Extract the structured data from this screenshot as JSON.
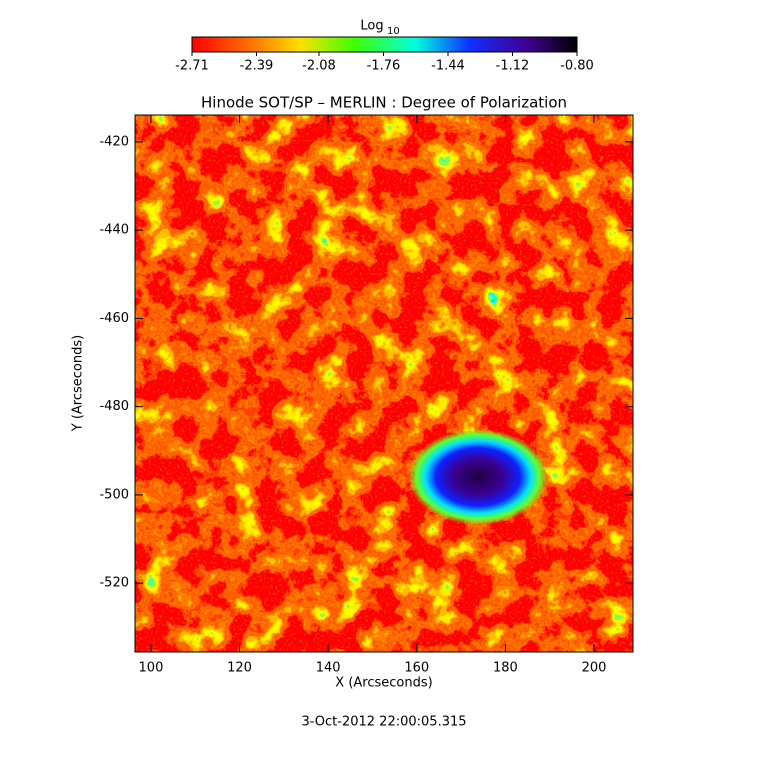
{
  "chart_data": {
    "type": "heatmap",
    "title": "Hinode SOT/SP – MERLIN : Degree of Polarization",
    "x_label": "X (Arcseconds)",
    "y_label": "Y (Arcseconds)",
    "xlim": [
      96.4,
      208.8
    ],
    "ylim": [
      -535.6,
      -413.9
    ],
    "xticks": [
      100,
      120,
      140,
      160,
      180,
      200
    ],
    "yticks": [
      -520,
      -500,
      -480,
      -460,
      -440,
      -420
    ],
    "colorbar": {
      "label": "Log",
      "label_subscript": "10",
      "lim": [
        -2.71,
        -0.8
      ],
      "ticks": [
        -2.71,
        -2.39,
        -2.08,
        -1.76,
        -1.44,
        -1.12,
        {
          "value": -0.8,
          "label": "-0.80"
        }
      ]
    },
    "date": "3-Oct-2012 22:00:05.315"
  }
}
